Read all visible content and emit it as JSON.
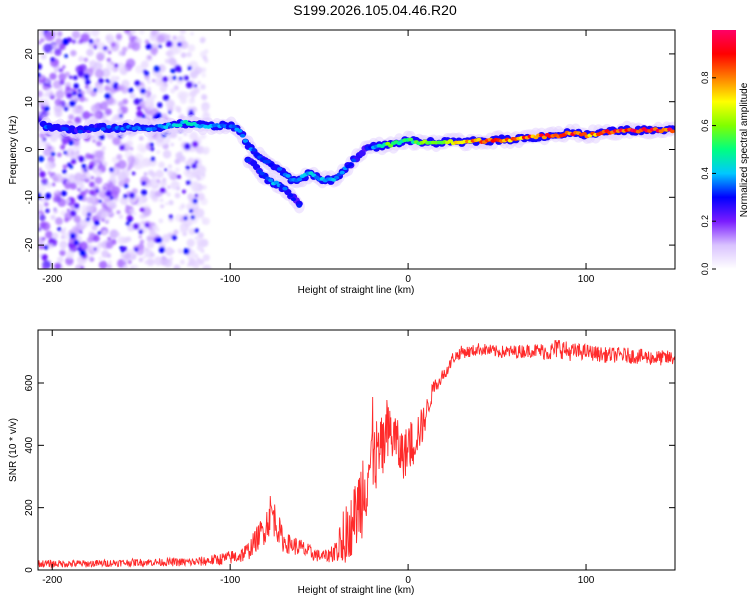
{
  "page": {
    "title": "S199.2026.105.04.46.R20"
  },
  "chart_data": [
    {
      "type": "heatmap",
      "title": "S199.2026.105.04.46.R20",
      "xlabel": "Height of straight line (km)",
      "ylabel": "Frequency (Hz)",
      "xlim": [
        -208,
        150
      ],
      "ylim": [
        -25,
        25
      ],
      "xticks": [
        -200,
        -100,
        0,
        100
      ],
      "yticks": [
        -20,
        -10,
        0,
        10,
        20
      ],
      "colorbar": {
        "label": "Normalized spectral amplitude",
        "range": [
          0,
          1
        ],
        "ticks": [
          "0.0",
          "0.2",
          "0.4",
          "0.6",
          "0.8"
        ],
        "tick_values": [
          0.0,
          0.2,
          0.4,
          0.6,
          0.8
        ],
        "colors": [
          "#ffffff",
          "#d9c2ff",
          "#7a1cff",
          "#0000ff",
          "#00c8ff",
          "#00ff80",
          "#80ff00",
          "#ffff00",
          "#ff8000",
          "#ff0000",
          "#ff0066"
        ]
      },
      "ridge": {
        "x": [
          -205,
          -195,
          -185,
          -175,
          -165,
          -155,
          -145,
          -135,
          -125,
          -115,
          -105,
          -100,
          -95,
          -90,
          -85,
          -80,
          -75,
          -70,
          -65,
          -60,
          -55,
          -50,
          -45,
          -40,
          -35,
          -30,
          -25,
          -20,
          -15,
          -10,
          -5,
          0,
          5,
          10,
          20,
          30,
          40,
          50,
          60,
          70,
          80,
          85,
          90,
          95,
          100,
          110,
          120,
          130,
          140,
          150
        ],
        "freq": [
          5,
          4.5,
          4,
          4.5,
          4.5,
          4.5,
          4.5,
          5,
          5.5,
          5,
          5,
          5,
          4,
          1,
          -1,
          -2.5,
          -3.5,
          -5,
          -6.5,
          -6,
          -5,
          -6,
          -6.5,
          -6,
          -4,
          -2,
          0,
          0.5,
          0.8,
          1.0,
          1.5,
          2,
          1.5,
          1.5,
          1.5,
          1.5,
          1.8,
          2,
          2.2,
          2.5,
          3,
          3,
          3.5,
          3.5,
          3,
          3.5,
          4,
          4,
          4,
          4
        ],
        "amplitude": [
          0.35,
          0.3,
          0.3,
          0.3,
          0.35,
          0.35,
          0.35,
          0.4,
          0.45,
          0.4,
          0.4,
          0.35,
          0.35,
          0.35,
          0.35,
          0.3,
          0.35,
          0.35,
          0.35,
          0.4,
          0.4,
          0.4,
          0.4,
          0.4,
          0.35,
          0.3,
          0.25,
          0.35,
          0.45,
          0.6,
          0.5,
          0.5,
          0.55,
          0.6,
          0.65,
          0.75,
          0.8,
          0.85,
          0.8,
          0.85,
          0.85,
          0.8,
          0.85,
          0.85,
          0.8,
          0.85,
          0.9,
          0.9,
          0.9,
          0.9
        ]
      },
      "branch": {
        "x": [
          -90,
          -85,
          -80,
          -75,
          -70,
          -65,
          -60
        ],
        "freq": [
          -2,
          -4,
          -6,
          -7,
          -8,
          -10,
          -12
        ],
        "amplitude": [
          0.3,
          0.3,
          0.35,
          0.4,
          0.35,
          0.3,
          0.3
        ]
      }
    },
    {
      "type": "line",
      "xlabel": "Height of straight line (km)",
      "ylabel": "SNR (10 * v/v)",
      "xlim": [
        -208,
        150
      ],
      "ylim": [
        0,
        770
      ],
      "xticks": [
        -200,
        -100,
        0,
        100
      ],
      "yticks": [
        0,
        200,
        400,
        600
      ],
      "line_color": "#ff2a2a",
      "series": [
        {
          "name": "SNR",
          "x": [
            -208,
            -180,
            -150,
            -120,
            -105,
            -95,
            -90,
            -85,
            -80,
            -77,
            -74,
            -70,
            -65,
            -60,
            -55,
            -50,
            -45,
            -40,
            -35,
            -30,
            -27,
            -25,
            -22,
            -20,
            -17,
            -15,
            -12,
            -10,
            -7,
            -5,
            -2,
            0,
            3,
            5,
            8,
            10,
            13,
            15,
            18,
            20,
            23,
            25,
            28,
            30,
            35,
            40,
            50,
            60,
            70,
            80,
            85,
            90,
            100,
            110,
            120,
            130,
            140,
            150
          ],
          "values": [
            20,
            20,
            25,
            25,
            35,
            45,
            60,
            100,
            140,
            190,
            150,
            90,
            80,
            70,
            55,
            45,
            45,
            70,
            100,
            170,
            220,
            280,
            330,
            360,
            370,
            380,
            420,
            440,
            420,
            380,
            370,
            390,
            410,
            440,
            460,
            500,
            560,
            590,
            610,
            630,
            650,
            680,
            690,
            700,
            700,
            710,
            700,
            700,
            705,
            700,
            715,
            700,
            700,
            690,
            690,
            685,
            680,
            680
          ],
          "noise": [
            12,
            12,
            12,
            14,
            20,
            25,
            30,
            40,
            55,
            70,
            55,
            35,
            30,
            30,
            25,
            20,
            20,
            50,
            80,
            110,
            140,
            160,
            140,
            130,
            120,
            110,
            100,
            100,
            90,
            80,
            80,
            80,
            80,
            70,
            60,
            45,
            30,
            25,
            20,
            20,
            20,
            20,
            20,
            20,
            20,
            20,
            20,
            22,
            22,
            30,
            35,
            30,
            25,
            25,
            25,
            25,
            25,
            25
          ]
        }
      ]
    }
  ]
}
